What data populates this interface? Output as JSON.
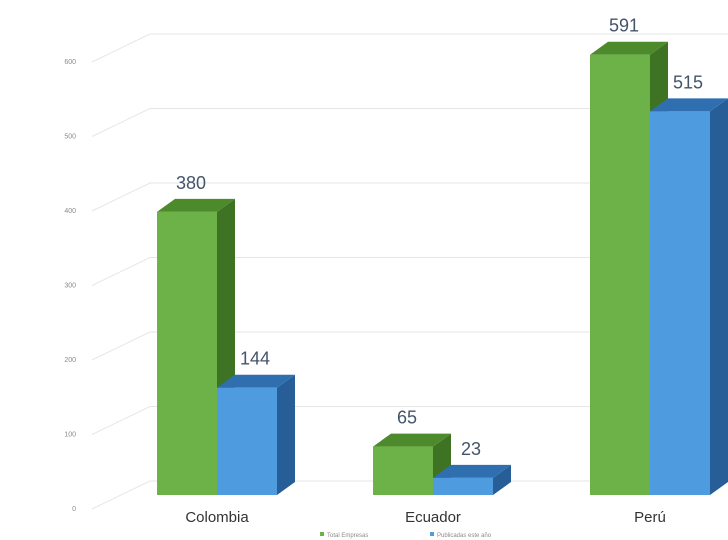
{
  "chart_data": {
    "type": "bar",
    "categories": [
      "Colombia",
      "Ecuador",
      "Perú"
    ],
    "series": [
      {
        "name": "Total Empresas",
        "values": [
          380,
          65,
          591
        ]
      },
      {
        "name": "Publicadas este año",
        "values": [
          144,
          23,
          515
        ]
      }
    ],
    "ylim": [
      0,
      600
    ],
    "yticks": [
      0,
      100,
      200,
      300,
      400,
      500,
      600
    ],
    "grid": true,
    "legend_position": "bottom",
    "style": "3d-clustered-column",
    "colors": {
      "series_0_front": "#6db249",
      "series_0_top": "#4d8a2c",
      "series_0_side": "#3f7324",
      "series_1_front": "#4f9be0",
      "series_1_top": "#2f6fb0",
      "series_1_side": "#275e97"
    }
  }
}
